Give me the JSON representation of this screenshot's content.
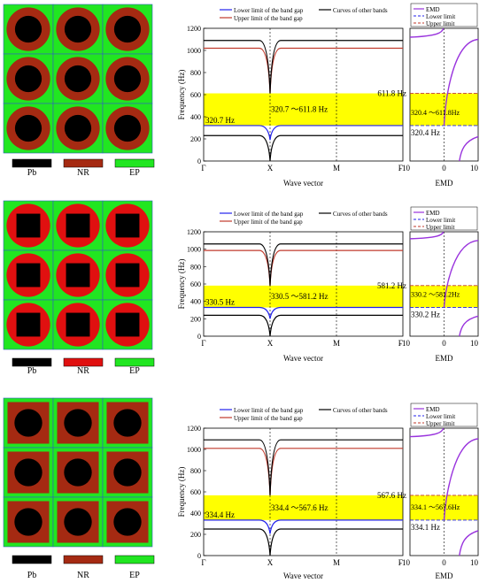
{
  "materials": {
    "pb_color": "#000000",
    "nr_color": "#e01010",
    "ep_color": "#21e621",
    "nr_color_dark": "#a52a12"
  },
  "legend_text": {
    "lower": "Lower limit of the band gap",
    "upper": "Upper limit of the band gap",
    "other": "Curves of other bands",
    "emd": "EMD",
    "lower_short": "Lower limit",
    "upper_short": "Upper limit"
  },
  "axis_text": {
    "ylabel": "Frequency (Hz)",
    "xlabel": "Wave vector",
    "emd_label": "EMD",
    "kpoints": [
      "Γ",
      "X",
      "M",
      "Γ"
    ],
    "emd_ticks": [
      "-10",
      "0",
      "10"
    ],
    "yticks": [
      "0",
      "200",
      "400",
      "600",
      "800",
      "1000",
      "1200"
    ]
  },
  "panels": [
    {
      "inclusion": "circle",
      "nr_tone": "dark",
      "swatch_labels": [
        "Pb",
        "NR",
        "EP"
      ],
      "swatch_colors": [
        "#000000",
        "#a52a12",
        "#21e621"
      ],
      "gap_text": "320.7 ～611.8   Hz",
      "lower_text": "320.7 Hz",
      "emd_upper_text": "611.8 Hz",
      "emd_gap_text": "320.4 ～611.8Hz",
      "emd_lower_text": "320.4 Hz",
      "emd_legend": "full"
    },
    {
      "inclusion": "square",
      "nr_tone": "bright",
      "swatch_labels": [
        "Pb",
        "NR",
        "EP"
      ],
      "swatch_colors": [
        "#000000",
        "#e01010",
        "#21e621"
      ],
      "gap_text": "330.5 ～581.2   Hz",
      "lower_text": "330.5 Hz",
      "emd_upper_text": "581.2 Hz",
      "emd_gap_text": "330.2 ～581.2Hz",
      "emd_lower_text": "330.2 Hz",
      "emd_legend": "full"
    },
    {
      "inclusion": "circle-in-square",
      "nr_tone": "dark",
      "swatch_labels": [
        "Pb",
        "NR",
        "EP"
      ],
      "swatch_colors": [
        "#000000",
        "#a52a12",
        "#21e621"
      ],
      "gap_text": "334.4 ～567.6   Hz",
      "lower_text": "334.4 Hz",
      "emd_upper_text": "567.6 Hz",
      "emd_gap_text": "334.1 ～567.6Hz",
      "emd_lower_text": "334.1 Hz",
      "emd_legend": "full"
    }
  ],
  "chart_data": [
    {
      "type": "line",
      "subplot": "band structure (a)",
      "x": [
        "Γ",
        "X",
        "M",
        "Γ"
      ],
      "xlabel": "Wave vector",
      "ylabel": "Frequency (Hz)",
      "ylim": [
        0,
        1200
      ],
      "band_gap": [
        320.7,
        611.8
      ],
      "series": [
        {
          "name": "Lower limit of the band gap",
          "color": "#2222ee",
          "values": [
            320.7,
            190,
            320.7,
            320.7
          ]
        },
        {
          "name": "Upper limit of the band gap",
          "color": "#c0392b",
          "values": [
            1020,
            611.8,
            1020,
            1020
          ]
        },
        {
          "name": "Curves of other bands",
          "color": "#000000",
          "values": [
            1090,
            611.8,
            1090,
            1090
          ]
        },
        {
          "name": "Curves of other bands",
          "color": "#000000",
          "values": [
            230,
            0,
            230,
            230
          ]
        }
      ]
    },
    {
      "type": "line",
      "subplot": "EMD (a)",
      "xlabel": "EMD",
      "xlim": [
        -10,
        10
      ],
      "ylim": [
        0,
        1200
      ],
      "lower_limit": 320.4,
      "upper_limit": 611.8
    },
    {
      "type": "line",
      "subplot": "band structure (b)",
      "x": [
        "Γ",
        "X",
        "M",
        "Γ"
      ],
      "xlabel": "Wave vector",
      "ylabel": "Frequency (Hz)",
      "ylim": [
        0,
        1200
      ],
      "band_gap": [
        330.5,
        581.2
      ],
      "series": [
        {
          "name": "Lower limit of the band gap",
          "color": "#2222ee",
          "values": [
            330.5,
            200,
            330.5,
            330.5
          ]
        },
        {
          "name": "Upper limit of the band gap",
          "color": "#c0392b",
          "values": [
            985,
            581.2,
            985,
            985
          ]
        },
        {
          "name": "Curves of other bands",
          "color": "#000000",
          "values": [
            1060,
            581.2,
            1060,
            1060
          ]
        },
        {
          "name": "Curves of other bands",
          "color": "#000000",
          "values": [
            240,
            0,
            240,
            240
          ]
        }
      ]
    },
    {
      "type": "line",
      "subplot": "EMD (b)",
      "xlabel": "EMD",
      "xlim": [
        -10,
        10
      ],
      "ylim": [
        0,
        1200
      ],
      "lower_limit": 330.2,
      "upper_limit": 581.2
    },
    {
      "type": "line",
      "subplot": "band structure (c)",
      "x": [
        "Γ",
        "X",
        "M",
        "Γ"
      ],
      "xlabel": "Wave vector",
      "ylabel": "Frequency (Hz)",
      "ylim": [
        0,
        1200
      ],
      "band_gap": [
        334.4,
        567.6
      ],
      "series": [
        {
          "name": "Lower limit of the band gap",
          "color": "#2222ee",
          "values": [
            334.4,
            205,
            334.4,
            334.4
          ]
        },
        {
          "name": "Upper limit of the band gap",
          "color": "#c0392b",
          "values": [
            1010,
            567.6,
            1010,
            1010
          ]
        },
        {
          "name": "Curves of other bands",
          "color": "#000000",
          "values": [
            1090,
            567.6,
            1090,
            1090
          ]
        },
        {
          "name": "Curves of other bands",
          "color": "#000000",
          "values": [
            250,
            0,
            250,
            250
          ]
        }
      ]
    },
    {
      "type": "line",
      "subplot": "EMD (c)",
      "xlabel": "EMD",
      "xlim": [
        -10,
        10
      ],
      "ylim": [
        0,
        1200
      ],
      "lower_limit": 334.1,
      "upper_limit": 567.6
    }
  ]
}
